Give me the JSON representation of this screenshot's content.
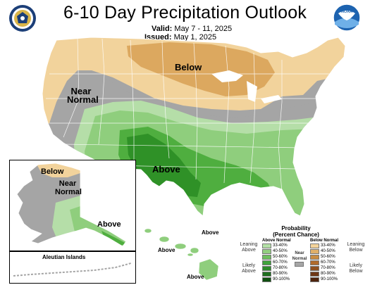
{
  "title": "6-10 Day Precipitation Outlook",
  "valid_label": "Valid:",
  "valid_value": "May 7 - 11, 2025",
  "issued_label": "Issued:",
  "issued_value": "May 1, 2025",
  "logos": {
    "left": "U.S. Department of Commerce seal",
    "right": "NOAA"
  },
  "map_labels": {
    "below_conus": "Below",
    "near_normal_conus_1": "Near",
    "near_normal_conus_2": "Normal",
    "above_conus": "Above",
    "alaska_below": "Below",
    "alaska_near_1": "Near",
    "alaska_near_2": "Normal",
    "alaska_above": "Above",
    "aleutian": "Aleutian Islands",
    "hawaii_above_1": "Above",
    "hawaii_above_2": "Above",
    "hawaii_above_3": "Above"
  },
  "legend": {
    "heading_1": "Probability",
    "heading_2": "(Percent Chance)",
    "above_head": "Above Normal",
    "below_head": "Below Normal",
    "near_1": "Near",
    "near_2": "Normal",
    "leaning_above_1": "Leaning",
    "leaning_above_2": "Above",
    "likely_above_1": "Likely",
    "likely_above_2": "Above",
    "leaning_below_1": "Leaning",
    "leaning_below_2": "Below",
    "likely_below_1": "Likely",
    "likely_below_2": "Below",
    "above_levels": [
      "33-40%",
      "40-50%",
      "50-60%",
      "60-70%",
      "70-80%",
      "80-90%",
      "90-100%"
    ],
    "below_levels": [
      "33-40%",
      "40-50%",
      "50-60%",
      "60-70%",
      "70-80%",
      "80-90%",
      "90-100%"
    ],
    "above_colors": [
      "#b3e0a6",
      "#93cf80",
      "#6fbf5f",
      "#40a33b",
      "#2d8a2a",
      "#1e6e1e",
      "#0f4f10"
    ],
    "below_colors": [
      "#f3d39b",
      "#e0b06a",
      "#c98d43",
      "#b06b2c",
      "#8f5020",
      "#6e3716",
      "#4e230d"
    ],
    "near_color": "#a6a6a6"
  },
  "colors": {
    "below_light": "#f2d39c",
    "below_mid": "#dca85f",
    "near": "#a5a5a5",
    "above_1": "#b5dea8",
    "above_2": "#8fce7d",
    "above_3": "#4fae3f",
    "above_4": "#2f9127",
    "outline": "#ffffff"
  }
}
